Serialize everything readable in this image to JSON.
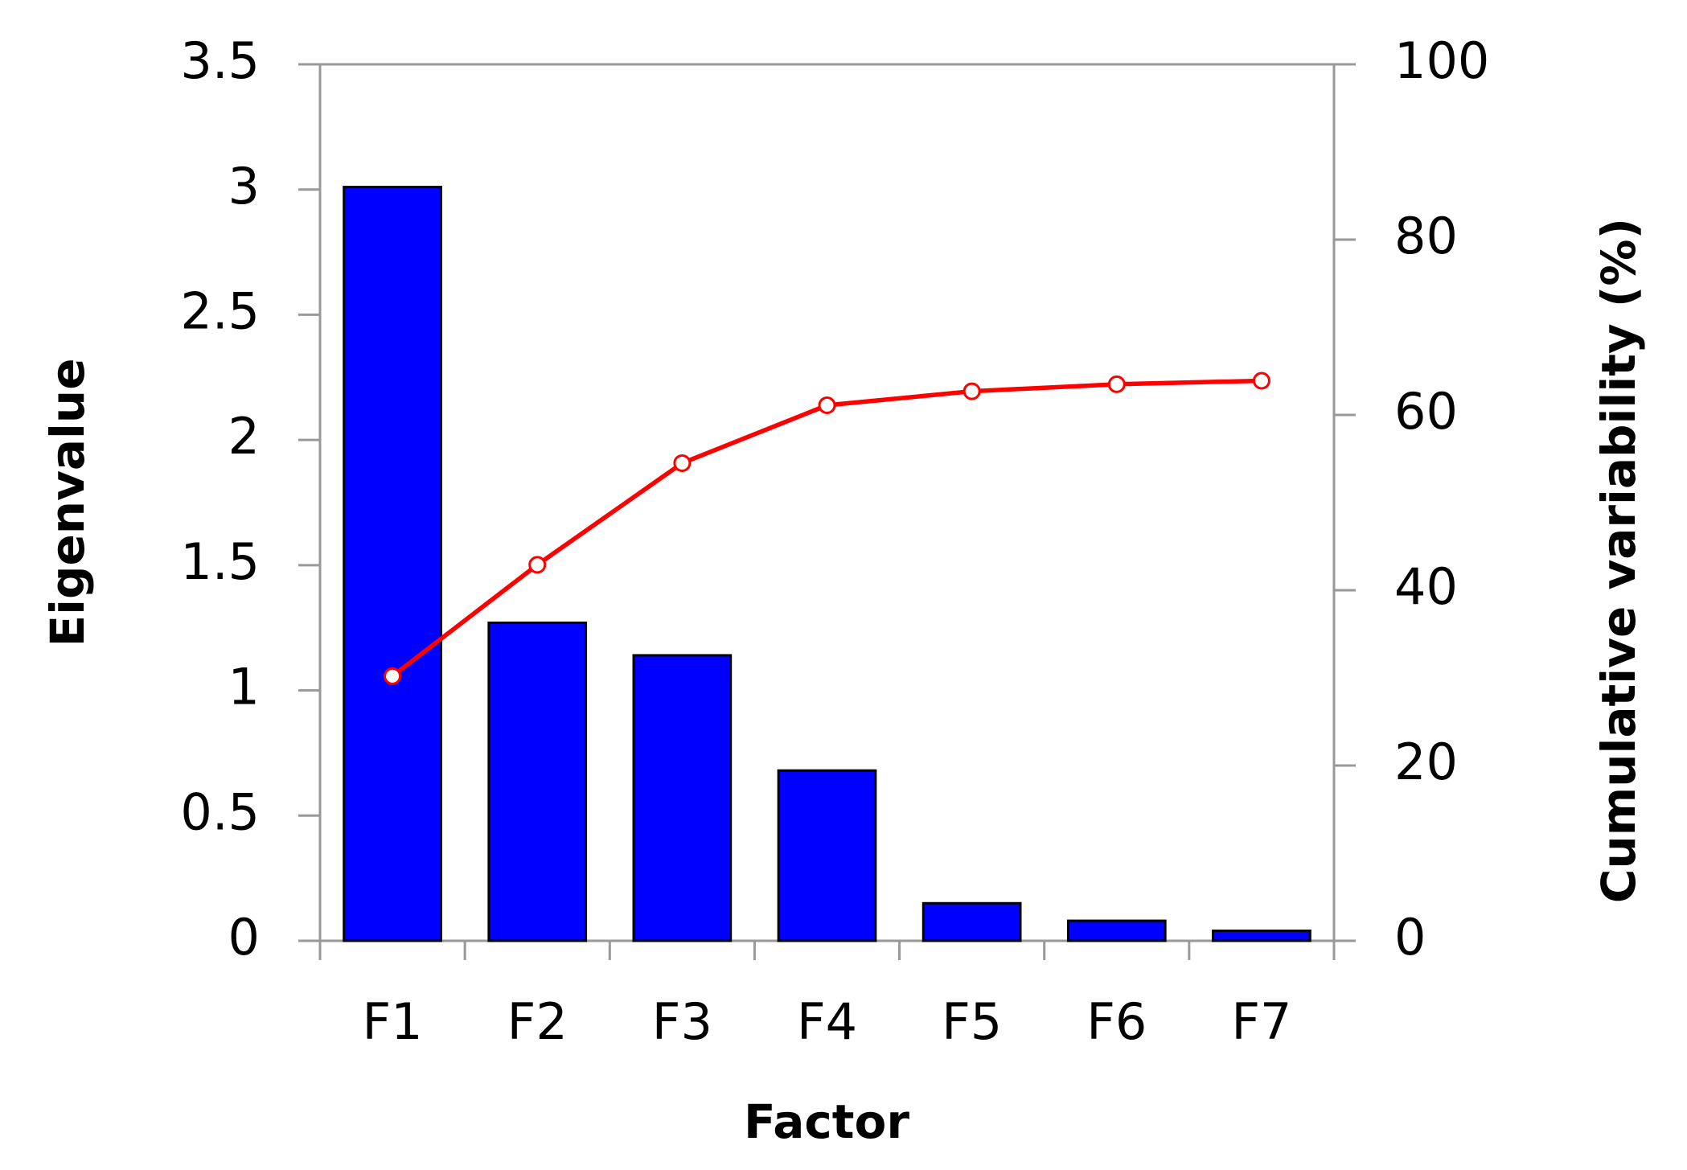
{
  "chart_data": {
    "type": "bar",
    "x_label": "Factor",
    "y_label": "Eigenvalue",
    "y2_label": "Cumulative variability (%)",
    "categories": [
      "F1",
      "F2",
      "F3",
      "F4",
      "F5",
      "F6",
      "F7"
    ],
    "series": [
      {
        "type": "bar",
        "color": "#0000ff",
        "values": [
          3.01,
          1.27,
          1.14,
          0.68,
          0.15,
          0.08,
          0.04
        ]
      },
      {
        "type": "line",
        "axis": "y2",
        "color": "#ff0000",
        "values": [
          30.2,
          42.9,
          54.5,
          61.1,
          62.7,
          63.5,
          63.9
        ]
      }
    ],
    "ylim": [
      0,
      3.5
    ],
    "yticks": [
      0,
      0.5,
      1,
      1.5,
      2,
      2.5,
      3,
      3.5
    ],
    "y2lim": [
      0,
      100
    ],
    "y2ticks": [
      0,
      20,
      40,
      60,
      80,
      100
    ],
    "grid": false
  }
}
